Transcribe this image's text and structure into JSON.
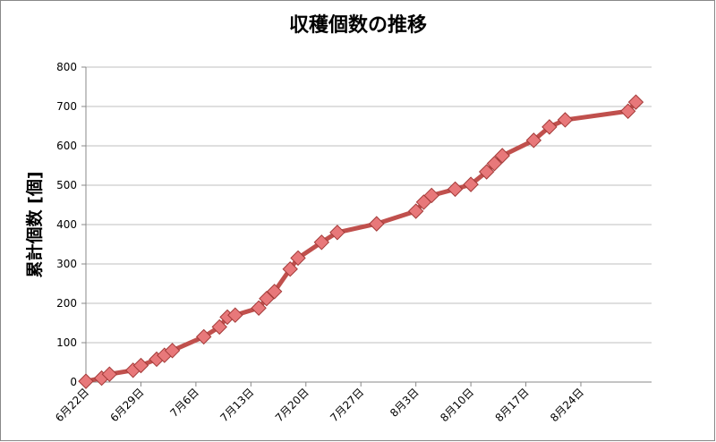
{
  "chart_data": {
    "type": "line",
    "title": "収穫個数の推移",
    "y_label": "累計個数 [個]",
    "x": [
      "06-22",
      "06-24",
      "06-25",
      "06-28",
      "06-29",
      "07-01",
      "07-02",
      "07-03",
      "07-07",
      "07-09",
      "07-10",
      "07-11",
      "07-14",
      "07-15",
      "07-16",
      "07-18",
      "07-19",
      "07-22",
      "07-24",
      "07-29",
      "08-03",
      "08-04",
      "08-05",
      "08-08",
      "08-10",
      "08-12",
      "08-13",
      "08-14",
      "08-18",
      "08-20",
      "08-22",
      "08-30",
      "08-31"
    ],
    "series": [
      {
        "name": "累計個数",
        "color": "#c0504d",
        "values": [
          2,
          10,
          20,
          30,
          42,
          58,
          68,
          80,
          115,
          140,
          165,
          170,
          188,
          212,
          230,
          287,
          315,
          355,
          380,
          402,
          434,
          457,
          474,
          490,
          502,
          534,
          555,
          575,
          614,
          648,
          666,
          688,
          711
        ]
      }
    ],
    "xlim": [
      "06-22",
      "09-02"
    ],
    "xticks": [
      {
        "value": "06-22",
        "label": "6月22日"
      },
      {
        "value": "06-29",
        "label": "6月29日"
      },
      {
        "value": "07-06",
        "label": "7月6日"
      },
      {
        "value": "07-13",
        "label": "7月13日"
      },
      {
        "value": "07-20",
        "label": "7月20日"
      },
      {
        "value": "07-27",
        "label": "7月27日"
      },
      {
        "value": "08-03",
        "label": "8月3日"
      },
      {
        "value": "08-10",
        "label": "8月10日"
      },
      {
        "value": "08-17",
        "label": "8月17日"
      },
      {
        "value": "08-24",
        "label": "8月24日"
      }
    ],
    "ylim": [
      0,
      800
    ],
    "yticks": [
      0,
      100,
      200,
      300,
      400,
      500,
      600,
      700,
      800
    ],
    "grid": true
  }
}
